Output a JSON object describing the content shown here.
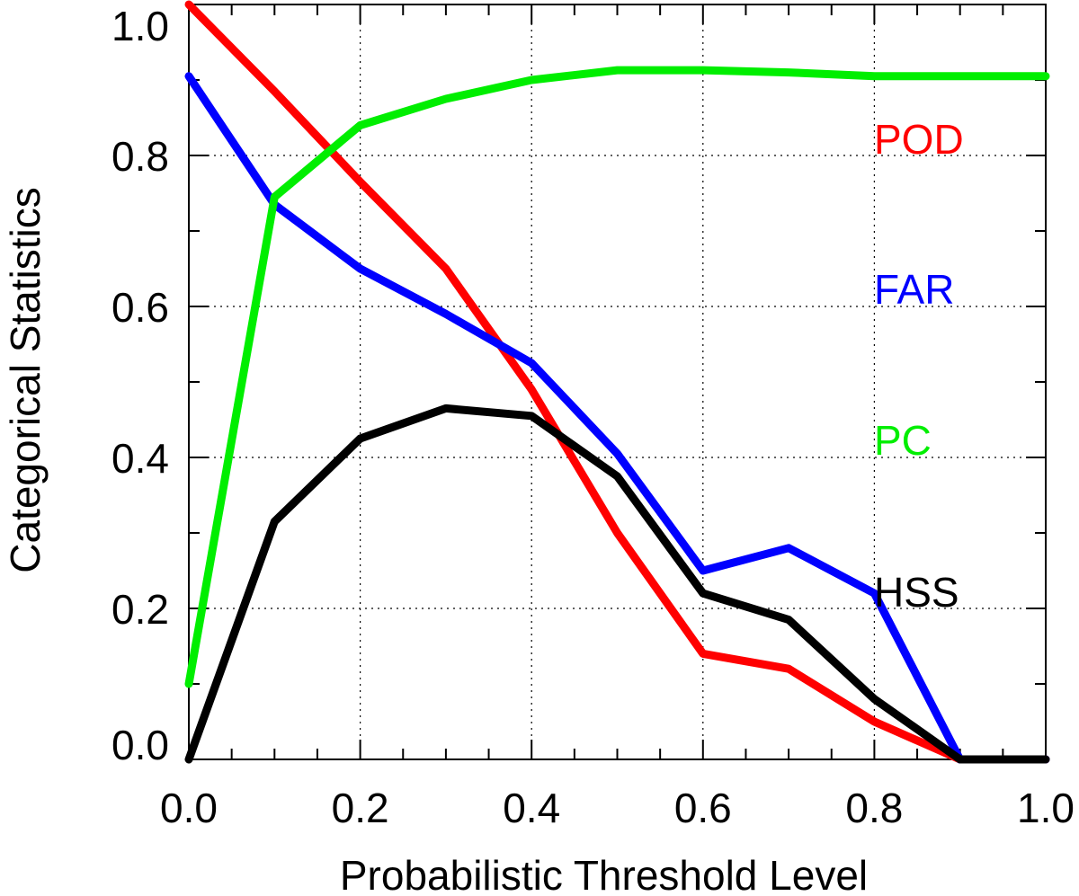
{
  "chart_data": {
    "type": "line",
    "title": "",
    "xlabel": "Probabilistic Threshold Level",
    "ylabel": "Categorical Statistics",
    "xlim": [
      0.0,
      1.0
    ],
    "ylim": [
      0.0,
      1.0
    ],
    "grid": true,
    "x_ticks": [
      "0.0",
      "0.2",
      "0.4",
      "0.6",
      "0.8",
      "1.0"
    ],
    "y_ticks": [
      "0.0",
      "0.2",
      "0.4",
      "0.6",
      "0.8",
      "1.0"
    ],
    "x": [
      0.0,
      0.1,
      0.2,
      0.3,
      0.4,
      0.5,
      0.6,
      0.7,
      0.8,
      0.9,
      1.0
    ],
    "series": [
      {
        "name": "POD",
        "color": "#ff0000",
        "values": [
          1.0,
          0.885,
          0.765,
          0.65,
          0.49,
          0.3,
          0.14,
          0.12,
          0.05,
          0.0,
          0.0
        ]
      },
      {
        "name": "FAR",
        "color": "#0000ff",
        "values": [
          0.905,
          0.735,
          0.65,
          0.59,
          0.525,
          0.405,
          0.25,
          0.28,
          0.22,
          0.0,
          0.0
        ]
      },
      {
        "name": "PC",
        "color": "#00ee00",
        "values": [
          0.1,
          0.745,
          0.84,
          0.875,
          0.9,
          0.913,
          0.913,
          0.91,
          0.905,
          0.905,
          0.905
        ]
      },
      {
        "name": "HSS",
        "color": "#000000",
        "values": [
          0.0,
          0.315,
          0.425,
          0.465,
          0.455,
          0.375,
          0.22,
          0.185,
          0.08,
          0.0,
          0.0
        ]
      }
    ],
    "legend_placement": "right, inside plot"
  }
}
